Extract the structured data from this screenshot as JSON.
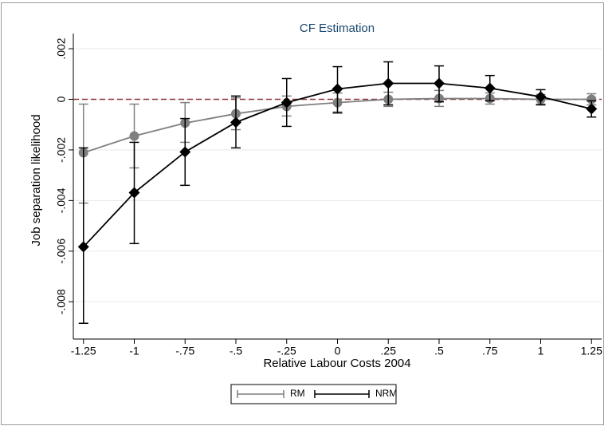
{
  "chart_data": {
    "type": "errorbar-line",
    "title": "CF Estimation",
    "x_label": "Relative Labour Costs 2004",
    "y_label": "Job separation likelihood",
    "x": [
      -1.25,
      -1,
      -0.75,
      -0.5,
      -0.25,
      0,
      0.25,
      0.5,
      0.75,
      1,
      1.25
    ],
    "series": [
      {
        "name": "RM",
        "color": "#7f7f7f",
        "marker": "circle",
        "values": [
          -0.00211,
          -0.00145,
          -0.00094,
          -0.00057,
          -0.00028,
          -0.00013,
          0,
          3e-05,
          3e-05,
          0,
          0
        ],
        "lower": [
          -0.0041,
          -0.00271,
          -0.0017,
          -0.0012,
          -0.00066,
          -0.0005,
          -0.00028,
          -0.00028,
          -0.00019,
          -0.00019,
          -0.00022
        ],
        "upper": [
          -0.00019,
          -0.00019,
          -0.00013,
          6e-05,
          0.00013,
          0.00025,
          0.00028,
          0.00035,
          0.00025,
          0.00019,
          0.00022
        ]
      },
      {
        "name": "NRM",
        "color": "#000000",
        "marker": "diamond",
        "values": [
          -0.00583,
          -0.00369,
          -0.00208,
          -0.00091,
          -0.00013,
          0.00041,
          0.00063,
          0.00063,
          0.00044,
          0.0001,
          -0.00038
        ],
        "lower": [
          -0.00885,
          -0.0057,
          -0.0034,
          -0.00192,
          -0.00107,
          -0.00054,
          -0.00022,
          -0.0001,
          -6e-05,
          -0.00022,
          -0.0007
        ],
        "upper": [
          -0.00192,
          -0.0017,
          -0.00076,
          0.00013,
          0.00082,
          0.00129,
          0.00148,
          0.00132,
          0.00094,
          0.00038,
          -6e-05
        ]
      }
    ],
    "xlim": [
      -1.3,
      1.3
    ],
    "ylim": [
      -0.009,
      0.0026
    ],
    "xticks": [
      {
        "value": -1.25,
        "label": "-1.25"
      },
      -1,
      {
        "value": -0.75,
        "label": "-.75"
      },
      {
        "value": -0.5,
        "label": "-.5"
      },
      {
        "value": -0.25,
        "label": "-.25"
      },
      0,
      {
        "value": 0.25,
        "label": ".25"
      },
      {
        "value": 0.5,
        "label": ".5"
      },
      {
        "value": 0.75,
        "label": ".75"
      },
      1,
      {
        "value": 1.25,
        "label": "1.25"
      }
    ],
    "yticks": [
      {
        "value": 0.002,
        "label": ".002"
      },
      0,
      {
        "value": -0.002,
        "label": "-.002"
      },
      {
        "value": -0.004,
        "label": "-.004"
      },
      {
        "value": -0.006,
        "label": "-.006"
      },
      {
        "value": -0.008,
        "label": "-.008"
      }
    ],
    "grid": true,
    "reference_line": {
      "value": 0,
      "color": "#90353b"
    },
    "legend": "bottom"
  }
}
